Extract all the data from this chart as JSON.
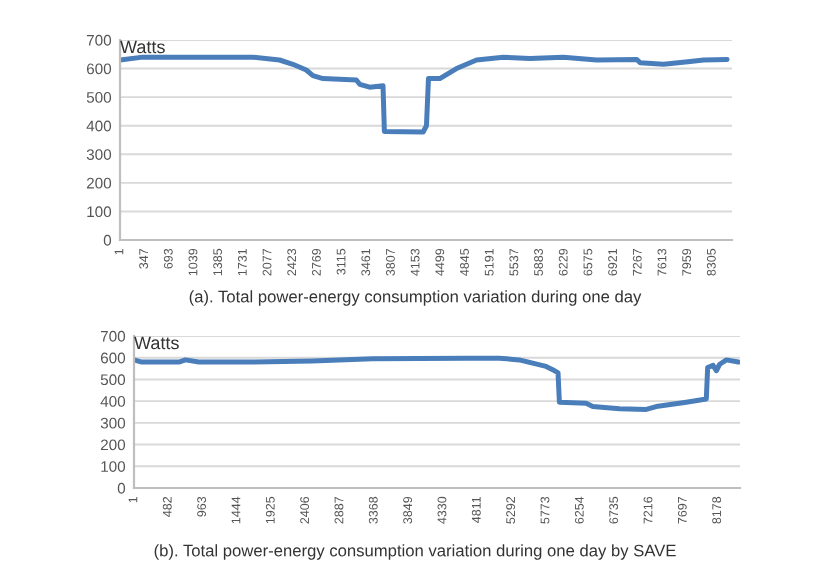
{
  "chart_data": [
    {
      "type": "line",
      "ylabel": "Watts",
      "annotations": [
        "(a). Total power-energy consumption variation during one day"
      ],
      "series": [
        {
          "color": "#4a7ebb",
          "x": [
            1,
            320,
            1863,
            2237,
            2424,
            2612,
            2705,
            2846,
            3314,
            3361,
            3501,
            3688,
            3707,
            4250,
            4297,
            4325,
            4484,
            4718,
            4999,
            5373,
            5748,
            6216,
            6684,
            7246,
            7293,
            7620,
            7995,
            8183,
            8511
          ],
          "values": [
            630,
            640,
            640,
            630,
            615,
            595,
            575,
            565,
            560,
            545,
            535,
            540,
            380,
            378,
            400,
            565,
            565,
            600,
            630,
            640,
            635,
            640,
            630,
            632,
            620,
            615,
            625,
            630,
            632
          ]
        }
      ],
      "xlim": [
        1,
        8580
      ],
      "xticks": [
        1,
        347,
        693,
        1039,
        1385,
        1731,
        2077,
        2423,
        2769,
        3115,
        3461,
        3807,
        4153,
        4499,
        4845,
        5191,
        5537,
        5883,
        6229,
        6575,
        6921,
        7267,
        7613,
        7959,
        8305
      ],
      "ylim": [
        0,
        700
      ],
      "yticks": [
        0,
        100,
        200,
        300,
        400,
        500,
        600,
        700
      ],
      "grid": "y",
      "legend": false
    },
    {
      "type": "line",
      "ylabel": "Watts",
      "annotations": [
        "(b). Total power-energy consumption variation during one day by SAVE"
      ],
      "series": [
        {
          "color": "#4a7ebb",
          "x": [
            1,
            113,
            628,
            722,
            909,
            1657,
            2499,
            3340,
            4650,
            5118,
            5398,
            5585,
            5773,
            5866,
            5941,
            5960,
            6334,
            6428,
            6802,
            7176,
            7316,
            7737,
            8018,
            8037,
            8112,
            8159,
            8206,
            8300,
            8468
          ],
          "values": [
            590,
            580,
            580,
            590,
            580,
            580,
            585,
            595,
            598,
            598,
            590,
            575,
            560,
            545,
            530,
            395,
            390,
            375,
            365,
            362,
            375,
            395,
            410,
            555,
            565,
            540,
            570,
            590,
            580
          ]
        }
      ],
      "xlim": [
        1,
        8490
      ],
      "xticks": [
        1,
        482,
        963,
        1444,
        1925,
        2406,
        2887,
        3368,
        3849,
        4330,
        4811,
        5292,
        5773,
        6254,
        6735,
        7216,
        7697,
        8178
      ],
      "ylim": [
        0,
        700
      ],
      "yticks": [
        0,
        100,
        200,
        300,
        400,
        500,
        600,
        700
      ],
      "grid": "y",
      "legend": false
    }
  ]
}
